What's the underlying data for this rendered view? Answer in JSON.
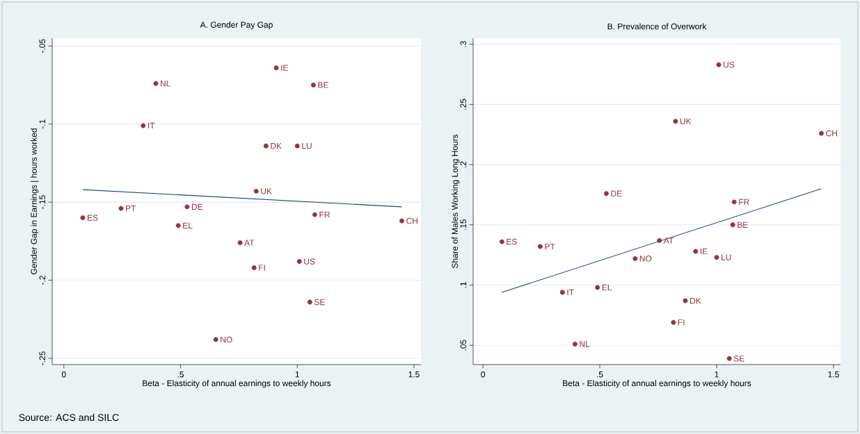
{
  "chart_data": [
    {
      "type": "scatter",
      "title": "A. Gender Pay Gap",
      "xlabel": "Beta - Elasticity of annual earnings to weekly hours",
      "ylabel": "Gender Gap in Earnings | hours worked",
      "xlim": [
        -0.05,
        1.53
      ],
      "ylim": [
        -0.254,
        -0.045
      ],
      "xticks": [
        0,
        {
          "value": 0.5,
          "label": ".5"
        },
        1,
        1.5
      ],
      "yticks": [
        {
          "value": -0.05,
          "label": "-.05"
        },
        {
          "value": -0.1,
          "label": "-.1"
        },
        {
          "value": -0.15,
          "label": "-.15"
        },
        {
          "value": -0.2,
          "label": "-.2"
        },
        {
          "value": -0.25,
          "label": "-.25"
        }
      ],
      "grid": "y",
      "series": [
        {
          "marker": "circle",
          "color": "#90353b",
          "x": [
            0.081,
            0.245,
            0.34,
            0.394,
            0.49,
            0.528,
            0.651,
            0.755,
            0.815,
            0.824,
            0.866,
            0.91,
            1.0,
            1.009,
            1.075,
            1.054,
            1.069,
            1.448
          ],
          "values": [
            -0.16,
            -0.154,
            -0.101,
            -0.074,
            -0.165,
            -0.153,
            -0.238,
            -0.176,
            -0.192,
            -0.143,
            -0.114,
            -0.064,
            -0.114,
            -0.188,
            -0.158,
            -0.214,
            -0.075,
            -0.162
          ],
          "value_labels": [
            "ES",
            "PT",
            "IT",
            "NL",
            "EL",
            "DE",
            "NO",
            "AT",
            "FI",
            "UK",
            "DK",
            "IE",
            "LU",
            "US",
            "FR",
            "SE",
            "BE",
            "CH"
          ]
        },
        {
          "type": "line",
          "color": "#1a476f",
          "x": [
            0.081,
            1.448
          ],
          "values": [
            -0.142,
            -0.153
          ]
        }
      ],
      "annotations": [
        "Source: ACS and SILC"
      ]
    },
    {
      "type": "scatter",
      "title": "B. Prevalence of Overwork",
      "xlabel": "Beta - Elasticity of annual earnings to weekly hours",
      "ylabel": "Share of Males Working Long Hours",
      "xlim": [
        -0.042,
        1.53
      ],
      "ylim": [
        0.034,
        0.305
      ],
      "xticks": [
        0,
        {
          "value": 0.5,
          "label": ".5"
        },
        1,
        1.5
      ],
      "yticks": [
        {
          "value": 0.05,
          "label": ".05"
        },
        {
          "value": 0.1,
          "label": ".1"
        },
        {
          "value": 0.15,
          "label": ".15"
        },
        {
          "value": 0.2,
          "label": ".2"
        },
        {
          "value": 0.25,
          "label": ".25"
        },
        {
          "value": 0.3,
          "label": ".3"
        }
      ],
      "grid": "y",
      "series": [
        {
          "marker": "circle",
          "color": "#90353b",
          "x": [
            0.081,
            0.245,
            0.34,
            0.394,
            0.49,
            0.528,
            0.651,
            0.755,
            0.815,
            0.824,
            0.866,
            0.91,
            1.0,
            1.009,
            1.075,
            1.054,
            1.069,
            1.448
          ],
          "values": [
            0.136,
            0.132,
            0.094,
            0.051,
            0.098,
            0.176,
            0.122,
            0.137,
            0.069,
            0.236,
            0.087,
            0.128,
            0.123,
            0.283,
            0.169,
            0.039,
            0.15,
            0.226
          ],
          "value_labels": [
            "ES",
            "PT",
            "IT",
            "NL",
            "EL",
            "DE",
            "NO",
            "AT",
            "FI",
            "UK",
            "DK",
            "IE",
            "LU",
            "US",
            "FR",
            "SE",
            "BE",
            "CH"
          ]
        },
        {
          "type": "line",
          "color": "#1a476f",
          "x": [
            0.081,
            1.448
          ],
          "values": [
            0.094,
            0.18
          ]
        }
      ]
    }
  ]
}
